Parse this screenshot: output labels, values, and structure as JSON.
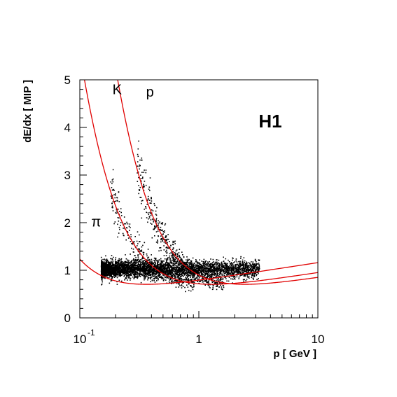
{
  "chart_data": {
    "type": "scatter",
    "title": "",
    "xlabel": "p [ GeV ]",
    "ylabel": "dE/dx [ MIP ]",
    "xscale": "log",
    "xlim": [
      0.1,
      10
    ],
    "ylim": [
      0,
      5
    ],
    "x_ticks": [
      {
        "value": 0.1,
        "base": "10",
        "exp": "-1"
      },
      {
        "value": 1,
        "base": "1",
        "exp": ""
      },
      {
        "value": 10,
        "base": "10",
        "exp": ""
      }
    ],
    "y_ticks": [
      0,
      1,
      2,
      3,
      4,
      5
    ],
    "grid": false,
    "experiment_label": "H1",
    "curves": [
      {
        "label": "π",
        "mass_gev": 0.1396,
        "color": "#e00000",
        "label_at": [
          0.125,
          1.92
        ]
      },
      {
        "label": "K",
        "mass_gev": 0.4937,
        "color": "#e00000",
        "label_at": [
          0.188,
          4.7
        ]
      },
      {
        "label": "p",
        "mass_gev": 0.9383,
        "color": "#e00000",
        "label_at": [
          0.36,
          4.65
        ]
      }
    ],
    "scatter_bands": [
      {
        "particle": "pi",
        "p_range": [
          0.15,
          3.2
        ],
        "count": 4200,
        "spread": 0.09
      },
      {
        "particle": "K",
        "p_range": [
          0.18,
          0.9
        ],
        "count": 380,
        "spread": 0.1
      },
      {
        "particle": "p",
        "p_range": [
          0.3,
          1.6
        ],
        "count": 520,
        "spread": 0.1
      }
    ],
    "marker_color": "#000000"
  }
}
